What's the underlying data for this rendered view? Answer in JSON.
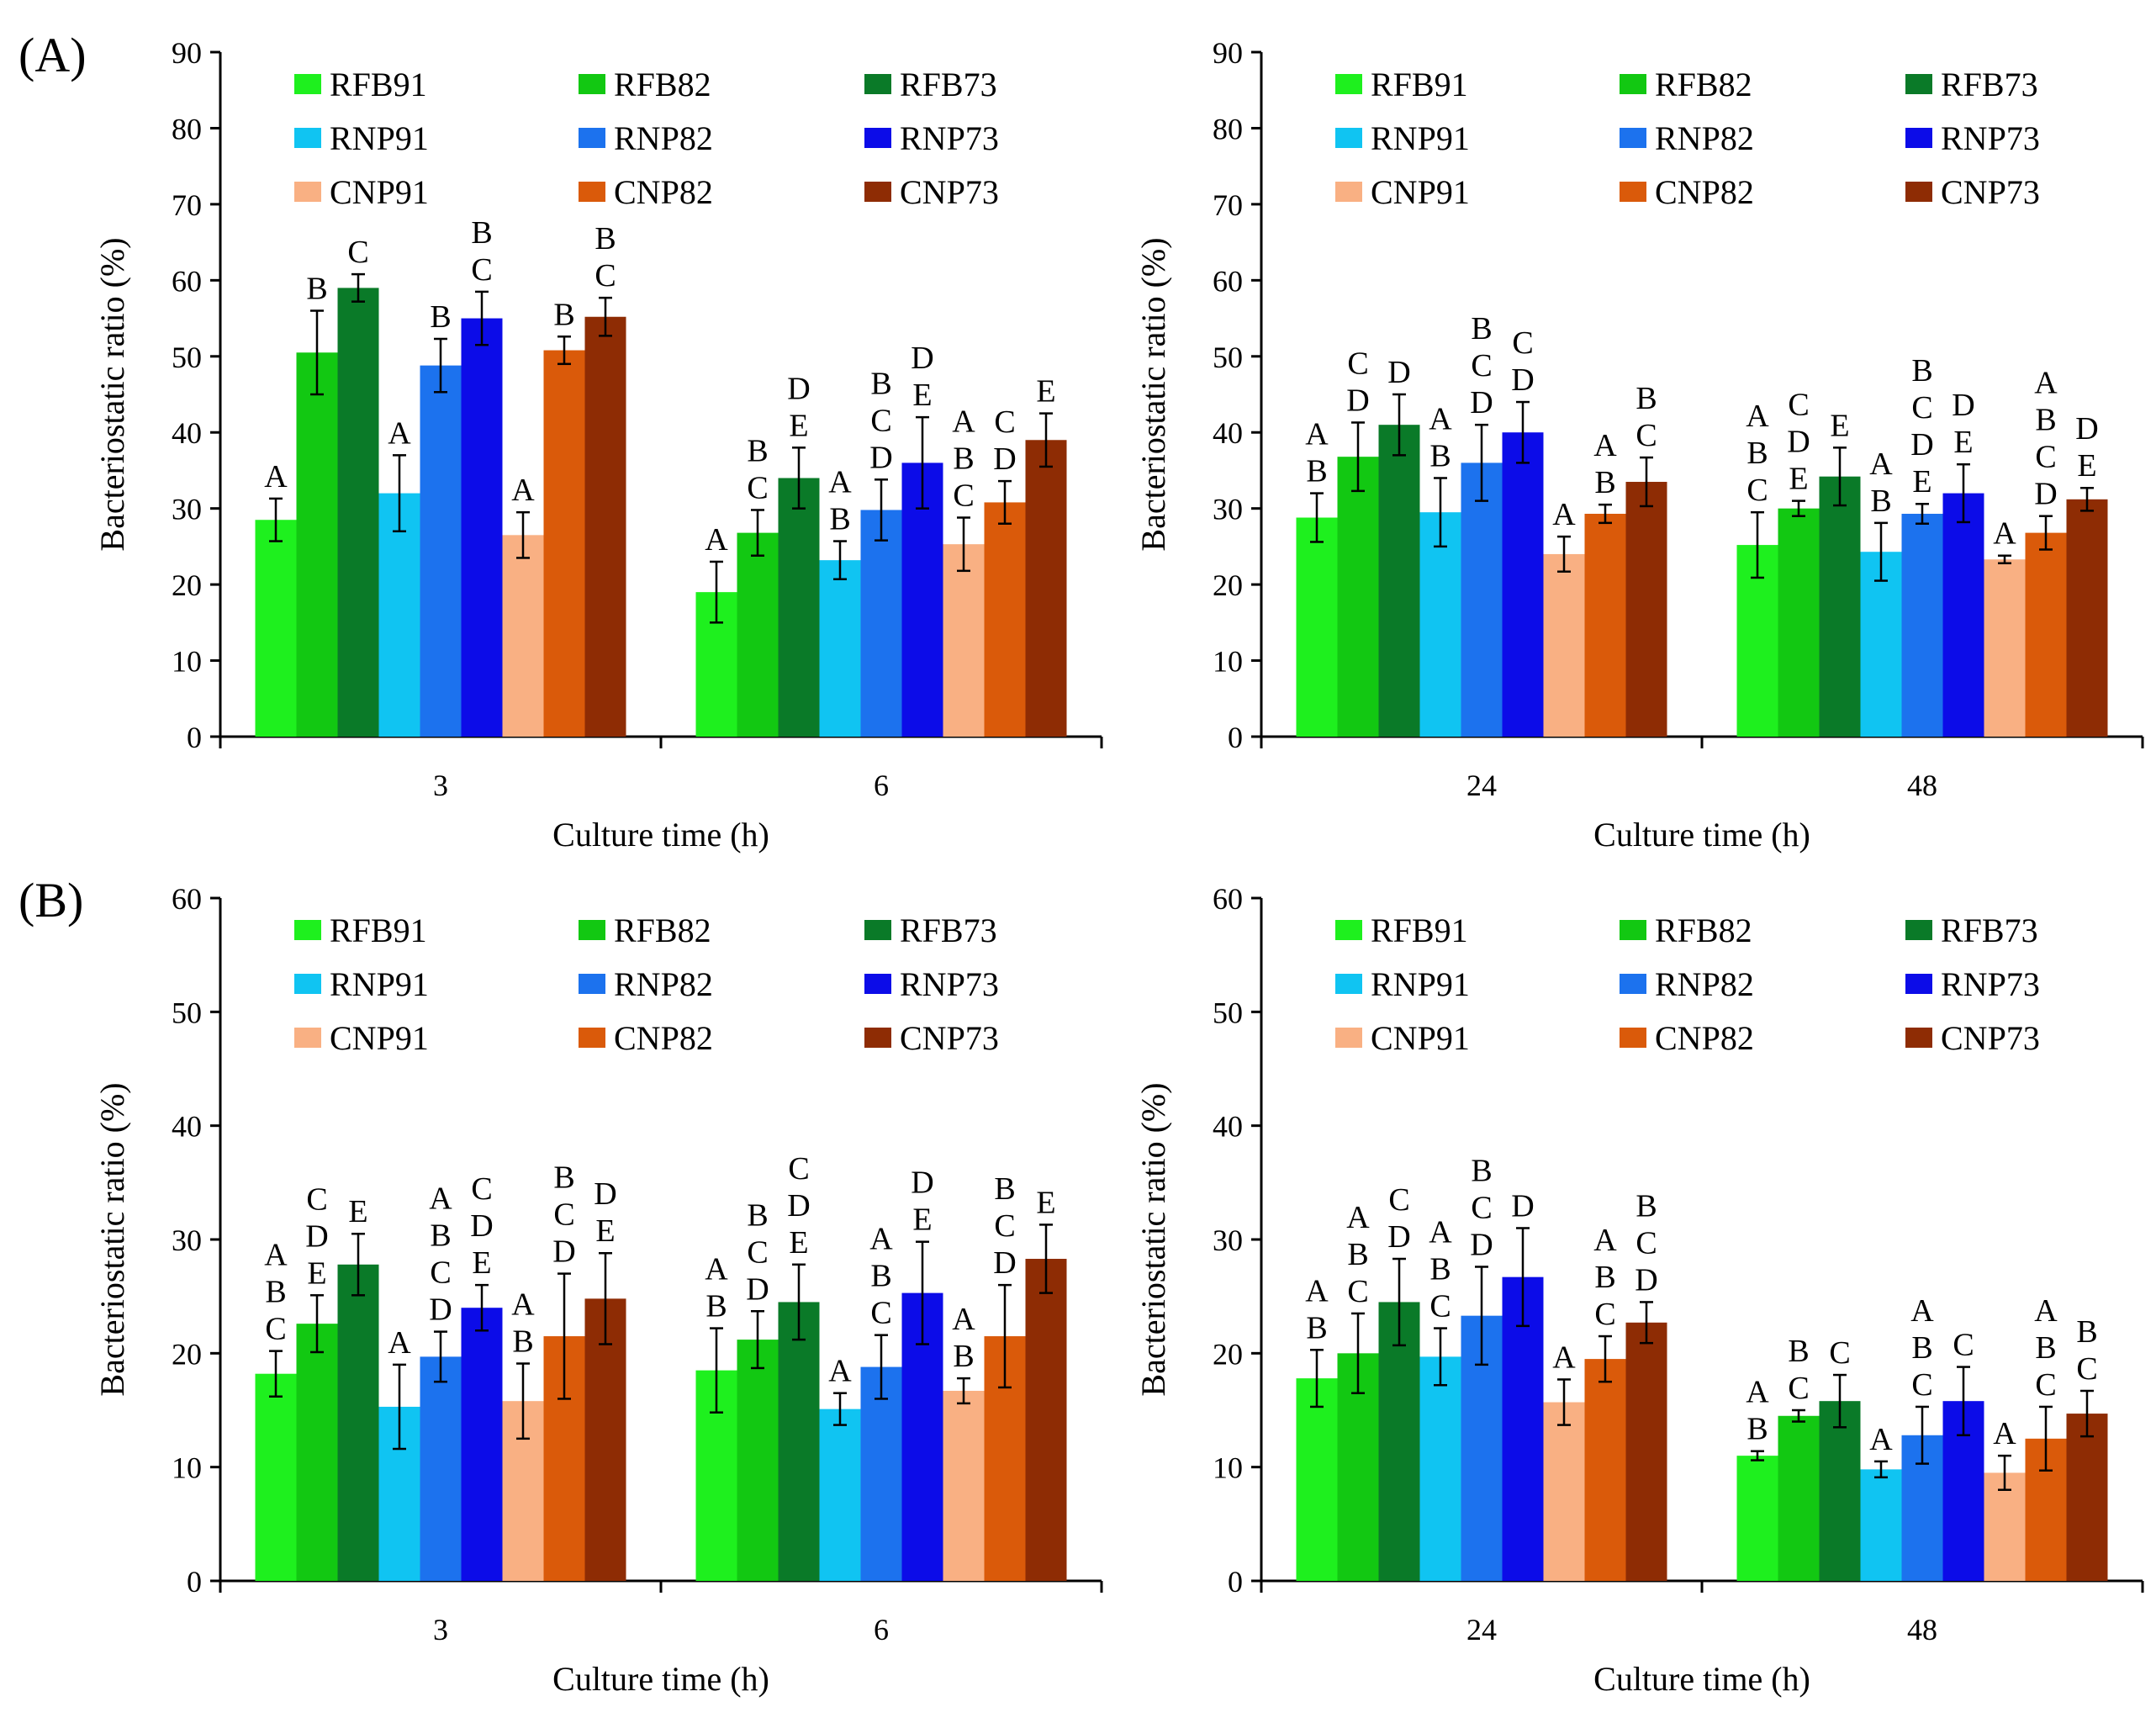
{
  "panel_labels": [
    "(A)",
    "(B)"
  ],
  "series_legend": [
    {
      "name": "RFB91",
      "color": "#1EF01E"
    },
    {
      "name": "RFB82",
      "color": "#12C812"
    },
    {
      "name": "RFB73",
      "color": "#0A7A28"
    },
    {
      "name": "RNP91",
      "color": "#10C4F2"
    },
    {
      "name": "RNP82",
      "color": "#1C72EE"
    },
    {
      "name": "RNP73",
      "color": "#0C0CE8"
    },
    {
      "name": "CNP91",
      "color": "#F9B083"
    },
    {
      "name": "CNP82",
      "color": "#DA5A0A"
    },
    {
      "name": "CNP73",
      "color": "#8E2C04"
    }
  ],
  "chart_data": [
    {
      "type": "bar",
      "panel": "(A)",
      "xlabel": "Culture time (h)",
      "ylabel": "Bacteriostatic ratio (%)",
      "ylim": [
        0,
        90
      ],
      "yticks": [
        0,
        10,
        20,
        30,
        40,
        50,
        60,
        70,
        80,
        90
      ],
      "categories": [
        "3",
        "6"
      ],
      "series": [
        {
          "name": "RFB91",
          "values": [
            28.5,
            19.0
          ],
          "errors": [
            2.8,
            4.0
          ],
          "letters": [
            "A",
            "A"
          ]
        },
        {
          "name": "RFB82",
          "values": [
            50.5,
            26.8
          ],
          "errors": [
            5.5,
            3.0
          ],
          "letters": [
            "B",
            "B C"
          ]
        },
        {
          "name": "RFB73",
          "values": [
            59.0,
            34.0
          ],
          "errors": [
            1.8,
            4.0
          ],
          "letters": [
            "C",
            "D E"
          ]
        },
        {
          "name": "RNP91",
          "values": [
            32.0,
            23.2
          ],
          "errors": [
            5.0,
            2.5
          ],
          "letters": [
            "A",
            "A B"
          ]
        },
        {
          "name": "RNP82",
          "values": [
            48.8,
            29.8
          ],
          "errors": [
            3.5,
            4.0
          ],
          "letters": [
            "B",
            "B C D"
          ]
        },
        {
          "name": "RNP73",
          "values": [
            55.0,
            36.0
          ],
          "errors": [
            3.5,
            6.0
          ],
          "letters": [
            "B C",
            "D E"
          ]
        },
        {
          "name": "CNP91",
          "values": [
            26.5,
            25.3
          ],
          "errors": [
            3.0,
            3.5
          ],
          "letters": [
            "A",
            "A B C"
          ]
        },
        {
          "name": "CNP82",
          "values": [
            50.8,
            30.8
          ],
          "errors": [
            1.8,
            2.8
          ],
          "letters": [
            "B",
            "C D"
          ]
        },
        {
          "name": "CNP73",
          "values": [
            55.2,
            39.0
          ],
          "errors": [
            2.5,
            3.5
          ],
          "letters": [
            "B C",
            "E"
          ]
        }
      ]
    },
    {
      "type": "bar",
      "panel": "(A)",
      "xlabel": "Culture time (h)",
      "ylabel": "Bacteriostatic ratio (%)",
      "ylim": [
        0,
        90
      ],
      "yticks": [
        0,
        10,
        20,
        30,
        40,
        50,
        60,
        70,
        80,
        90
      ],
      "categories": [
        "24",
        "48"
      ],
      "series": [
        {
          "name": "RFB91",
          "values": [
            28.8,
            25.2
          ],
          "errors": [
            3.2,
            4.3
          ],
          "letters": [
            "A B",
            "A B C"
          ]
        },
        {
          "name": "RFB82",
          "values": [
            36.8,
            30.0
          ],
          "errors": [
            4.5,
            1.0
          ],
          "letters": [
            "C D",
            "C D E"
          ]
        },
        {
          "name": "RFB73",
          "values": [
            41.0,
            34.2
          ],
          "errors": [
            4.0,
            3.8
          ],
          "letters": [
            "D",
            "E"
          ]
        },
        {
          "name": "RNP91",
          "values": [
            29.5,
            24.3
          ],
          "errors": [
            4.5,
            3.8
          ],
          "letters": [
            "A B",
            "A B"
          ]
        },
        {
          "name": "RNP82",
          "values": [
            36.0,
            29.3
          ],
          "errors": [
            5.0,
            1.3
          ],
          "letters": [
            "B C D",
            "B C D E"
          ]
        },
        {
          "name": "RNP73",
          "values": [
            40.0,
            32.0
          ],
          "errors": [
            4.0,
            3.8
          ],
          "letters": [
            "C D",
            "D E"
          ]
        },
        {
          "name": "CNP91",
          "values": [
            24.0,
            23.3
          ],
          "errors": [
            2.3,
            0.5
          ],
          "letters": [
            "A",
            "A"
          ]
        },
        {
          "name": "CNP82",
          "values": [
            29.3,
            26.8
          ],
          "errors": [
            1.2,
            2.2
          ],
          "letters": [
            "A B",
            "A B C D"
          ]
        },
        {
          "name": "CNP73",
          "values": [
            33.5,
            31.2
          ],
          "errors": [
            3.2,
            1.5
          ],
          "letters": [
            "B C",
            "D E"
          ]
        }
      ]
    },
    {
      "type": "bar",
      "panel": "(B)",
      "xlabel": "Culture time (h)",
      "ylabel": "Bacteriostatic ratio (%)",
      "ylim": [
        0,
        60
      ],
      "yticks": [
        0,
        10,
        20,
        30,
        40,
        50,
        60
      ],
      "categories": [
        "3",
        "6"
      ],
      "series": [
        {
          "name": "RFB91",
          "values": [
            18.2,
            18.5
          ],
          "errors": [
            2.0,
            3.7
          ],
          "letters": [
            "A B C",
            "A B"
          ]
        },
        {
          "name": "RFB82",
          "values": [
            22.6,
            21.2
          ],
          "errors": [
            2.5,
            2.5
          ],
          "letters": [
            "C D E",
            "B C D"
          ]
        },
        {
          "name": "RFB73",
          "values": [
            27.8,
            24.5
          ],
          "errors": [
            2.7,
            3.3
          ],
          "letters": [
            "E",
            "C D E"
          ]
        },
        {
          "name": "RNP91",
          "values": [
            15.3,
            15.1
          ],
          "errors": [
            3.7,
            1.4
          ],
          "letters": [
            "A",
            "A"
          ]
        },
        {
          "name": "RNP82",
          "values": [
            19.7,
            18.8
          ],
          "errors": [
            2.2,
            2.8
          ],
          "letters": [
            "A B C D",
            "A B C"
          ]
        },
        {
          "name": "RNP73",
          "values": [
            24.0,
            25.3
          ],
          "errors": [
            2.0,
            4.5
          ],
          "letters": [
            "C D E",
            "D E"
          ]
        },
        {
          "name": "CNP91",
          "values": [
            15.8,
            16.7
          ],
          "errors": [
            3.3,
            1.1
          ],
          "letters": [
            "A B",
            "A B"
          ]
        },
        {
          "name": "CNP82",
          "values": [
            21.5,
            21.5
          ],
          "errors": [
            5.5,
            4.5
          ],
          "letters": [
            "B C D",
            "B C D"
          ]
        },
        {
          "name": "CNP73",
          "values": [
            24.8,
            28.3
          ],
          "errors": [
            4.0,
            3.0
          ],
          "letters": [
            "D E",
            "E"
          ]
        }
      ]
    },
    {
      "type": "bar",
      "panel": "(B)",
      "xlabel": "Culture time (h)",
      "ylabel": "Bacteriostatic ratio (%)",
      "ylim": [
        0,
        60
      ],
      "yticks": [
        0,
        10,
        20,
        30,
        40,
        50,
        60
      ],
      "categories": [
        "24",
        "48"
      ],
      "series": [
        {
          "name": "RFB91",
          "values": [
            17.8,
            11.0
          ],
          "errors": [
            2.5,
            0.4
          ],
          "letters": [
            "A B",
            "A B"
          ]
        },
        {
          "name": "RFB82",
          "values": [
            20.0,
            14.5
          ],
          "errors": [
            3.5,
            0.5
          ],
          "letters": [
            "A B C",
            "B C"
          ]
        },
        {
          "name": "RFB73",
          "values": [
            24.5,
            15.8
          ],
          "errors": [
            3.8,
            2.3
          ],
          "letters": [
            "C D",
            "C"
          ]
        },
        {
          "name": "RNP91",
          "values": [
            19.7,
            9.8
          ],
          "errors": [
            2.5,
            0.7
          ],
          "letters": [
            "A B C",
            "A"
          ]
        },
        {
          "name": "RNP82",
          "values": [
            23.3,
            12.8
          ],
          "errors": [
            4.3,
            2.5
          ],
          "letters": [
            "B C D",
            "A B C"
          ]
        },
        {
          "name": "RNP73",
          "values": [
            26.7,
            15.8
          ],
          "errors": [
            4.3,
            3.0
          ],
          "letters": [
            "D",
            "C"
          ]
        },
        {
          "name": "CNP91",
          "values": [
            15.7,
            9.5
          ],
          "errors": [
            2.0,
            1.5
          ],
          "letters": [
            "A",
            "A"
          ]
        },
        {
          "name": "CNP82",
          "values": [
            19.5,
            12.5
          ],
          "errors": [
            2.0,
            2.8
          ],
          "letters": [
            "A B C",
            "A B C"
          ]
        },
        {
          "name": "CNP73",
          "values": [
            22.7,
            14.7
          ],
          "errors": [
            1.8,
            2.0
          ],
          "letters": [
            "B C D",
            "B C"
          ]
        }
      ]
    }
  ]
}
